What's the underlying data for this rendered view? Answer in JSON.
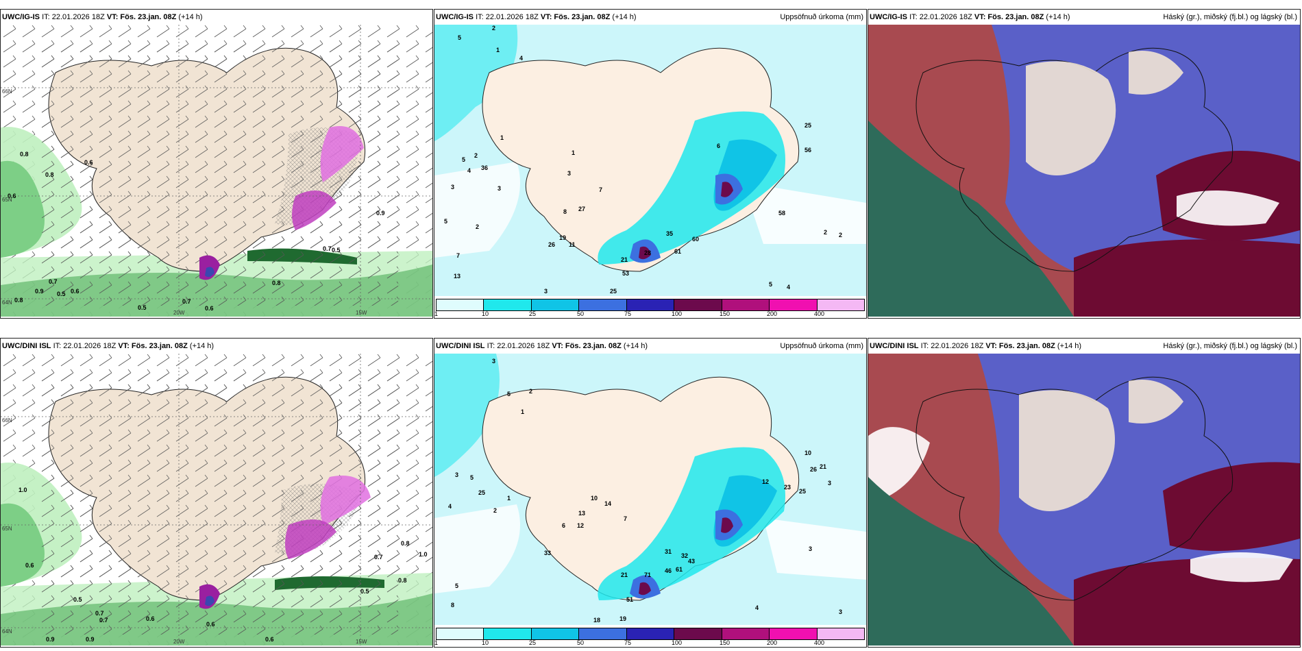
{
  "rows": [
    {
      "model": "UWC/IG-IS",
      "it": "IT: 22.01.2026 18Z",
      "vt_label": "VT:",
      "vt": "Fös. 23.jan. 08Z",
      "lead": "(+14 h)",
      "axis_labels": [
        "66N",
        "65N",
        "64N",
        "20W",
        "15W"
      ],
      "precip_values": [
        "5",
        "2",
        "1",
        "4",
        "5",
        "36",
        "2",
        "4",
        "3",
        "3",
        "5",
        "2",
        "7",
        "13",
        "19",
        "26",
        "8",
        "27",
        "11",
        "7",
        "3",
        "1",
        "1",
        "35",
        "60",
        "61",
        "6",
        "56",
        "25",
        "58",
        "28",
        "21",
        "53",
        "25",
        "3",
        "2",
        "2",
        "5",
        "4"
      ],
      "wind_values": [
        "0.8",
        "0.6",
        "0.8",
        "0.6",
        "0.7",
        "0.9",
        "0.5",
        "0.6",
        "0.8",
        "0.7",
        "0.6",
        "0.5",
        "0.7",
        "0.8",
        "0.5",
        "0.9"
      ]
    },
    {
      "model": "UWC/DINI ISL",
      "it": "IT: 22.01.2026 18Z",
      "vt_label": "VT:",
      "vt": "Fös. 23.jan. 08Z",
      "lead": "(+14 h)",
      "axis_labels": [
        "66N",
        "65N",
        "64N",
        "20W",
        "15W"
      ],
      "precip_values": [
        "3",
        "5",
        "2",
        "1",
        "5",
        "3",
        "25",
        "4",
        "2",
        "1",
        "10",
        "14",
        "13",
        "6",
        "12",
        "7",
        "33",
        "5",
        "8",
        "31",
        "32",
        "43",
        "46",
        "61",
        "21",
        "71",
        "51",
        "18",
        "19",
        "12",
        "23",
        "25",
        "10",
        "26",
        "21",
        "3",
        "4",
        "3",
        "3"
      ],
      "wind_values": [
        "1.0",
        "0.6",
        "0.5",
        "0.7",
        "0.6",
        "0.6",
        "0.5",
        "0.8",
        "0.7",
        "0.9",
        "0.6",
        "0.9",
        "1.0",
        "0.8",
        "0.7"
      ]
    }
  ],
  "precip_title": "Uppsöfnuð úrkoma (mm)",
  "cloud_title": "Háský (gr.), miðský (fj.bl.) og lágský (bl.)",
  "colorbar": {
    "ticks": [
      "1",
      "10",
      "25",
      "50",
      "75",
      "100",
      "150",
      "200",
      "400"
    ],
    "colors": [
      "#dffcfd",
      "#20e8ec",
      "#10c4e6",
      "#3c70e0",
      "#2a22b4",
      "#6c0a4c",
      "#b0107c",
      "#f010b0",
      "#f4b8f4"
    ]
  },
  "colors": {
    "land": "#f1e4d4",
    "land_precip": "#fcefe2",
    "sea_precip_light": "#ccf6fa",
    "green_dark": "#2d8a3e",
    "green_light": "#bff0bf",
    "high_cloud": "#5a60c8",
    "mid_cloud": "#6d0b32",
    "low_cloud": "#2e6b5a"
  }
}
